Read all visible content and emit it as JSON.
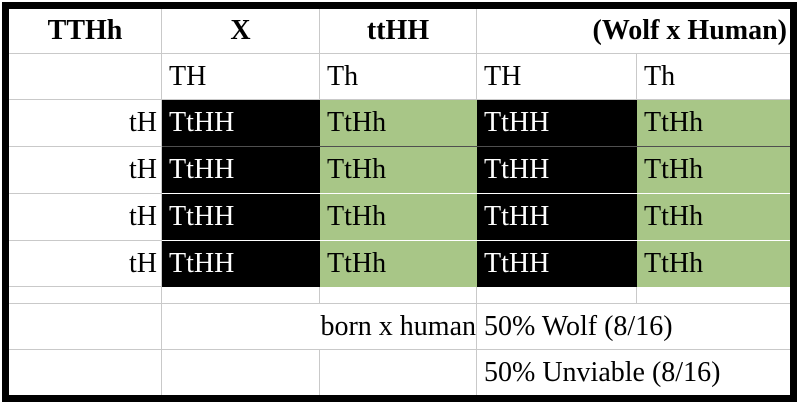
{
  "table": {
    "header": {
      "parent1": "TTHh",
      "cross_symbol": "X",
      "parent2": "ttHH",
      "note": "(Wolf x Human)"
    },
    "gametes": [
      "TH",
      "Th",
      "TH",
      "Th"
    ],
    "punnett_rows": [
      {
        "label": "tH",
        "cells": [
          "TtHH",
          "TtHh",
          "TtHH",
          "TtHh"
        ]
      },
      {
        "label": "tH",
        "cells": [
          "TtHH",
          "TtHh",
          "TtHH",
          "TtHh"
        ]
      },
      {
        "label": "tH",
        "cells": [
          "TtHH",
          "TtHh",
          "TtHH",
          "TtHh"
        ]
      },
      {
        "label": "tH",
        "cells": [
          "TtHH",
          "TtHh",
          "TtHH",
          "TtHh"
        ]
      }
    ],
    "summary": {
      "cross_note": "born x human",
      "result1": "50% Wolf (8/16)",
      "result2": "50% Unviable (8/16)"
    }
  },
  "colors": {
    "wolf_fill": "#000000",
    "hybrid_fill": "#a8c687",
    "gridline": "#c9c9c9"
  }
}
